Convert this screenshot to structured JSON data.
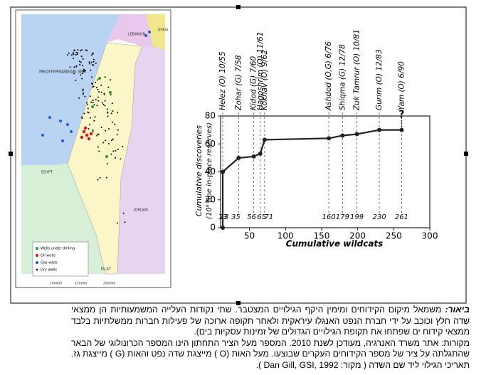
{
  "map": {
    "regions": [
      "LEBANON",
      "SYRIA",
      "MEDITERRANEAN SEA",
      "EGYPT",
      "JORDAN",
      "EILAT"
    ],
    "coordinates": [
      "100000",
      "150000",
      "200000"
    ],
    "legend": [
      "Wells under drilling",
      "Oil wells",
      "Gas wells",
      "Dry wells"
    ]
  },
  "chart_data": {
    "type": "line",
    "x_label": "Cumulative wildcats",
    "y_label": [
      "Cumulative discoveries",
      "(10⁶ Boe in-place reserves)"
    ],
    "x": [
      13,
      13,
      35,
      56,
      65,
      71,
      160,
      179,
      199,
      230,
      261
    ],
    "values": [
      0,
      40,
      50,
      51,
      53,
      63,
      64,
      66,
      67,
      70,
      70
    ],
    "fields": [
      "Helez (O) 10/55",
      "Zohar (G) 7/58",
      "Kidod (G) 7/60",
      "Hagoshrim (O) 11/61",
      "Kokhav (O) 9/62",
      "Ashdod (O,G) 6/76",
      "Shiqma (G) 12/78",
      "Zuk Tamrur (O) 10/81",
      "Gurim (O) 12/83",
      "Yam (O) 6/90"
    ],
    "uncertain": "?",
    "color": "#222222",
    "xlim": [
      10,
      300
    ],
    "xticks": [
      50,
      100,
      150,
      200,
      250,
      300
    ],
    "ylim": [
      0,
      80
    ],
    "yticks": [
      0,
      20,
      40,
      60,
      80
    ],
    "grid": false
  },
  "caption": {
    "lead": "ביאור:",
    "body": "משמאל מיקום הקידוחים ומימין היקף הגילויים המצטבר. שתי נקודות העלייה המשמעותיות הן ממצאי שדה חלץ וכוכב על ידי חברת הנפט האנגלו עיראקית ולאחר תקופה ארוכה של פעילות חברות ממשלתיות בלבד ממצאי קידוח ים שפתחו את תקופת הגילויים הגדולים של זמינות עסקיות בים).",
    "sources": "מקורות: אתר משרד האנרגיה, מעודכן לשנת 2010. המספר מעל הציר התחתון הינו המספר הכרונולוגי של הבאר שהתגלתה על ציר של מספר הקידוחים העקרים שבוצעו. מעל האות (O ) מייצגת שדה נפט והאות (G ) מייצגת גז. תאריכי הגילוי ליד שם השדה ( מקור: Dan Gill, GSI, 1992 )."
  }
}
